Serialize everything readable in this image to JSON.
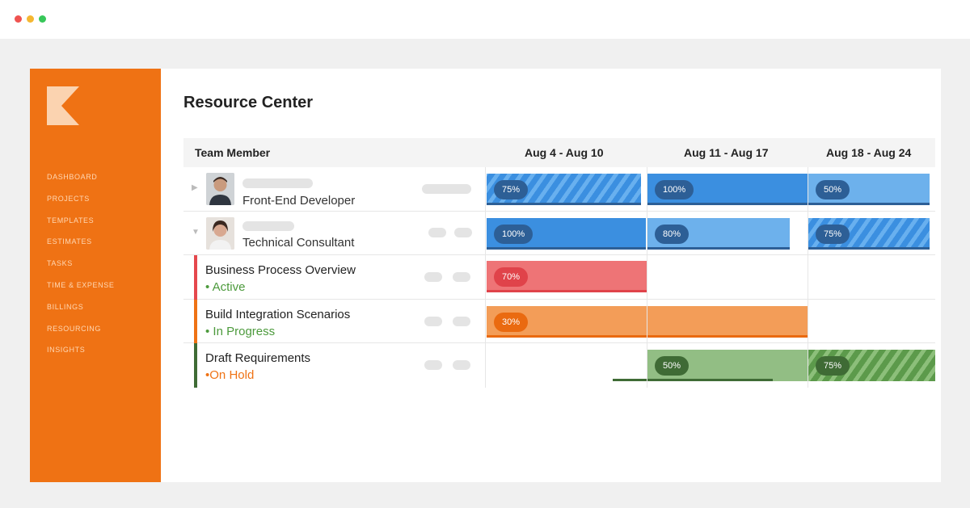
{
  "page": {
    "title": "Resource Center"
  },
  "window_controls": {
    "close_color": "#ef5350",
    "minimize_color": "#f5b731",
    "maximize_color": "#37c759"
  },
  "brand": {
    "accent": "#ef7214"
  },
  "sidebar": {
    "items": [
      "DASHBOARD",
      "PROJECTS",
      "TEMPLATES",
      "ESTIMATES",
      "TASKS",
      "TIME & EXPENSE",
      "BILLINGS",
      "RESOURCING",
      "INSIGHTS"
    ]
  },
  "table": {
    "columns": [
      "Team Member",
      "Aug 4 - Aug 10",
      "Aug 11 - Aug 17",
      "Aug 18 - Aug 24"
    ],
    "members": [
      {
        "role": "Front-End Developer",
        "expanded": false,
        "allocations": [
          "75%",
          "100%",
          "50%"
        ]
      },
      {
        "role": "Technical Consultant",
        "expanded": true,
        "allocations": [
          "100%",
          "80%",
          "75%"
        ]
      }
    ],
    "tasks": [
      {
        "name": "Business Process Overview",
        "status": "Active",
        "status_color": "#4c9a3c",
        "accent": "#e5484d",
        "allocations": [
          "70%"
        ]
      },
      {
        "name": "Build Integration Scenarios",
        "status": "In Progress",
        "status_color": "#4c9a3c",
        "accent": "#ef7214",
        "allocations": [
          "30%"
        ]
      },
      {
        "name": "Draft Requirements",
        "status": "On Hold",
        "status_color": "#ef7214",
        "accent": "#3f6b35",
        "allocations": [
          "50%",
          "75%"
        ]
      }
    ]
  }
}
